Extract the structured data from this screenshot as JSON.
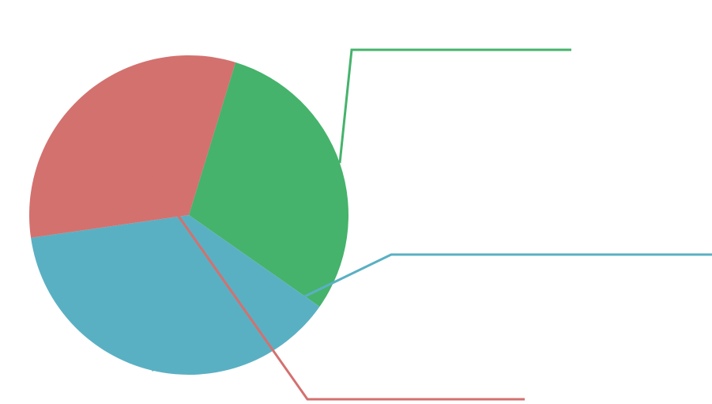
{
  "chart_data": {
    "type": "pie",
    "title": "",
    "legend": "none",
    "slices": [
      {
        "value": 30.0,
        "color": "#45b36b"
      },
      {
        "value": 38.0,
        "color": "#5ab0c3"
      },
      {
        "value": 32.0,
        "color": "#d3716f"
      }
    ]
  }
}
